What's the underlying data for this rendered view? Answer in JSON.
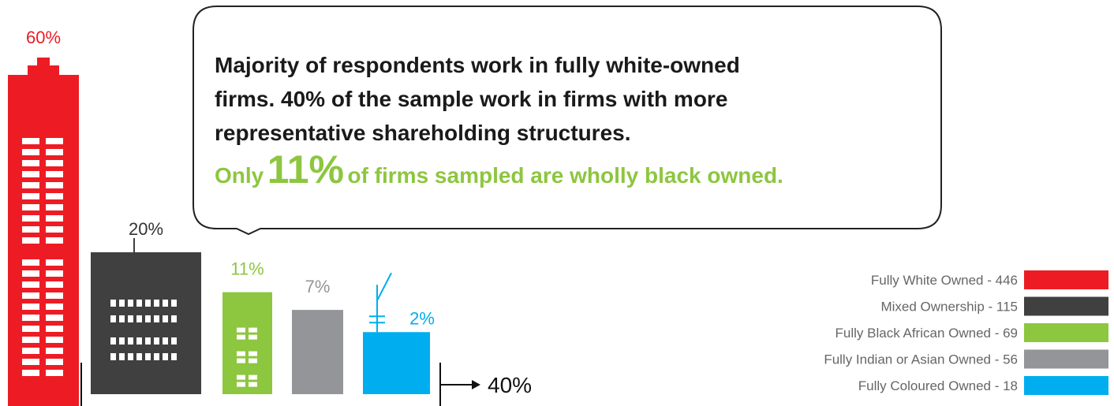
{
  "chart_data": {
    "type": "bar",
    "categories": [
      "Fully White Owned - 446",
      "Mixed Ownership - 115",
      "Fully Black African Owned - 69",
      "Fully Indian or Asian Owned - 56",
      "Fully Coloured Owned - 18"
    ],
    "values": [
      60,
      20,
      11,
      7,
      2
    ],
    "value_labels": [
      "60%",
      "20%",
      "11%",
      "7%",
      "2%"
    ],
    "colors": [
      "#ed1c24",
      "#404040",
      "#8dc63f",
      "#939598",
      "#00aeef"
    ],
    "annotations": {
      "callout_lines": [
        "Majority of respondents work in fully white-owned",
        "firms. 40% of the sample work in firms with more",
        "representative shareholding structures."
      ],
      "highlight_prefix": "Only",
      "highlight_value": "11%",
      "highlight_suffix": "of firms sampled are wholly black owned.",
      "bracket_label": "40%"
    }
  }
}
